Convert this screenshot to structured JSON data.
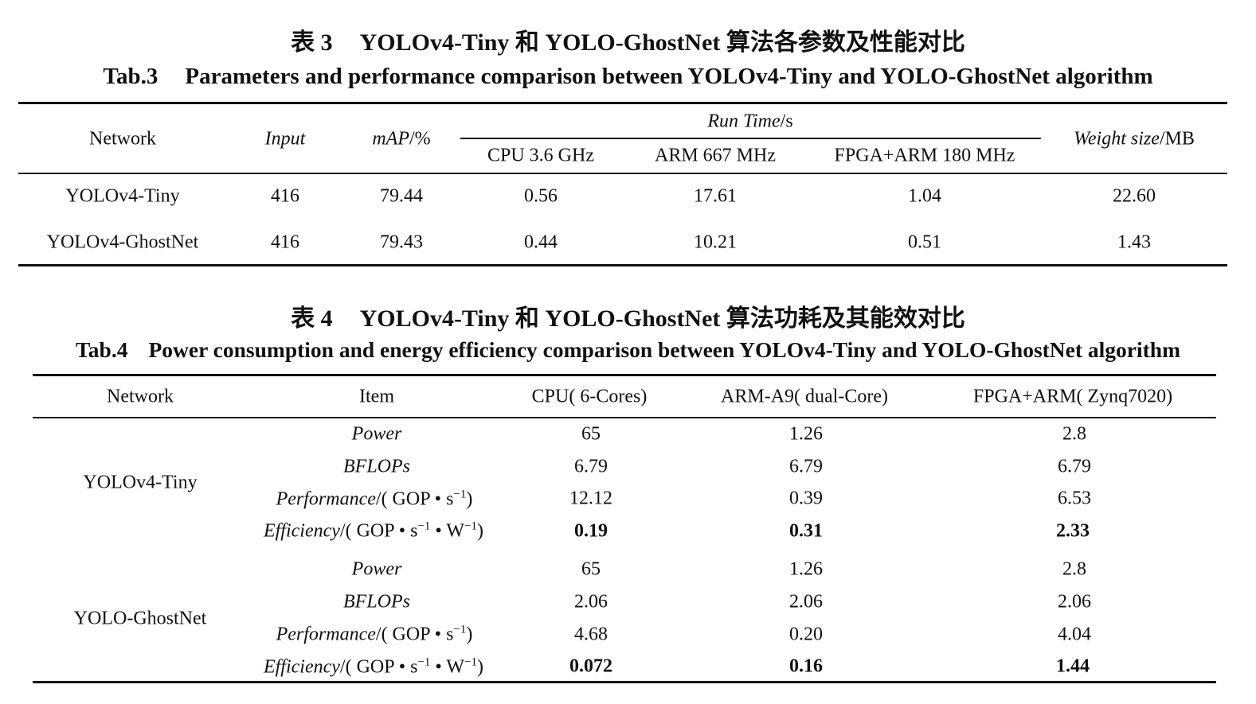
{
  "table3": {
    "caption_cn_label": "表 3",
    "caption_cn": "YOLOv4-Tiny 和 YOLO-GhostNet 算法各参数及性能对比",
    "caption_en_label": "Tab.3",
    "caption_en": "Parameters and performance comparison between YOLOv4-Tiny and YOLO-GhostNet algorithm",
    "headers": {
      "network": "Network",
      "input": "Input",
      "map_name": "mAP",
      "map_unit": "/%",
      "run_time_name": "Run Time",
      "run_time_unit": "/s",
      "cpu": "CPU 3.6 GHz",
      "arm": "ARM 667 MHz",
      "fpga": "FPGA+ARM 180 MHz",
      "weight_name": "Weight size",
      "weight_unit": "/MB"
    },
    "rows": [
      {
        "network": "YOLOv4-Tiny",
        "input": "416",
        "map": "79.44",
        "cpu": "0.56",
        "arm": "17.61",
        "fpga": "1.04",
        "weight": "22.60"
      },
      {
        "network": "YOLOv4-GhostNet",
        "input": "416",
        "map": "79.43",
        "cpu": "0.44",
        "arm": "10.21",
        "fpga": "0.51",
        "weight": "1.43"
      }
    ]
  },
  "table4": {
    "caption_cn_label": "表 4",
    "caption_cn": "YOLOv4-Tiny 和 YOLO-GhostNet 算法功耗及其能效对比",
    "caption_en_label": "Tab.4",
    "caption_en": "Power consumption and energy efficiency comparison between YOLOv4-Tiny and YOLO-GhostNet algorithm",
    "headers": {
      "network": "Network",
      "item": "Item",
      "cpu": "CPU( 6-Cores)",
      "arm": "ARM-A9( dual-Core)",
      "fpga": "FPGA+ARM( Zynq7020)"
    },
    "item_labels": {
      "power": "Power",
      "bflops": "BFLOPs",
      "performance_name": "Performance",
      "performance_unit_open": "/( GOP • s",
      "efficiency_name": "Efficiency",
      "efficiency_unit_open": "/( GOP • s",
      "efficiency_unit_mid": " • W",
      "exp": "−1",
      "close": ")"
    },
    "groups": [
      {
        "network": "YOLOv4-Tiny",
        "power": {
          "cpu": "65",
          "arm": "1.26",
          "fpga": "2.8"
        },
        "bflops": {
          "cpu": "6.79",
          "arm": "6.79",
          "fpga": "6.79"
        },
        "performance": {
          "cpu": "12.12",
          "arm": "0.39",
          "fpga": "6.53"
        },
        "efficiency": {
          "cpu": "0.19",
          "arm": "0.31",
          "fpga": "2.33"
        }
      },
      {
        "network": "YOLO-GhostNet",
        "power": {
          "cpu": "65",
          "arm": "1.26",
          "fpga": "2.8"
        },
        "bflops": {
          "cpu": "2.06",
          "arm": "2.06",
          "fpga": "2.06"
        },
        "performance": {
          "cpu": "4.68",
          "arm": "0.20",
          "fpga": "4.04"
        },
        "efficiency": {
          "cpu": "0.072",
          "arm": "0.16",
          "fpga": "1.44"
        }
      }
    ]
  }
}
